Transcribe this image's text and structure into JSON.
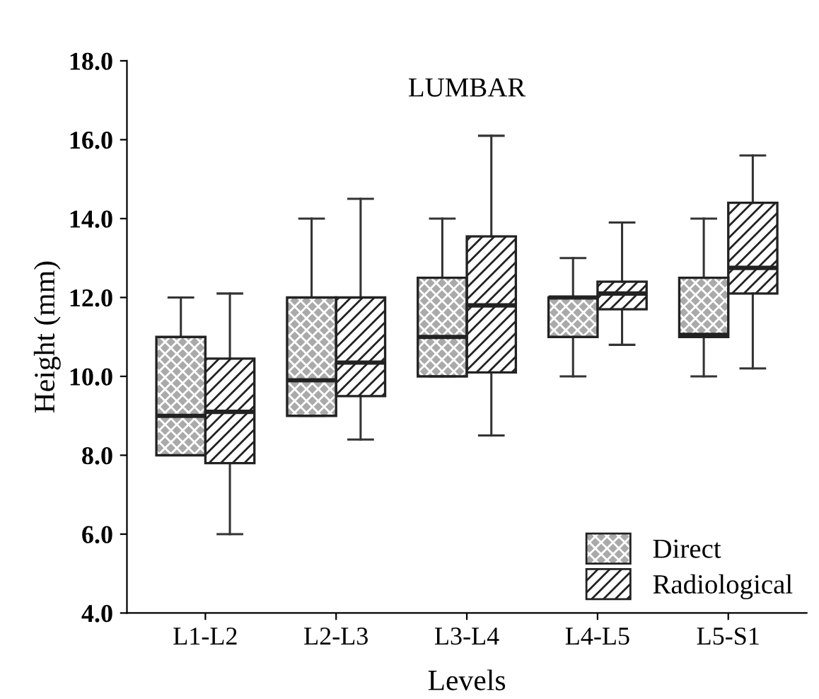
{
  "chart_data": {
    "type": "box",
    "title": "LUMBAR",
    "xlabel": "Levels",
    "ylabel": "Height (mm)",
    "categories": [
      "L1-L2",
      "L2-L3",
      "L3-L4",
      "L4-L5",
      "L5-S1"
    ],
    "series": [
      {
        "name": "Direct",
        "color": "#aaaaaa",
        "boxes": [
          {
            "low": 8,
            "q1": 8,
            "median": 9,
            "q3": 11,
            "high": 12
          },
          {
            "low": 9,
            "q1": 9,
            "median": 9.9,
            "q3": 12,
            "high": 14
          },
          {
            "low": 10,
            "q1": 10,
            "median": 11,
            "q3": 12.5,
            "high": 14
          },
          {
            "low": 10,
            "q1": 11,
            "median": 12,
            "q3": 12,
            "high": 13
          },
          {
            "low": 10,
            "q1": 11,
            "median": 11.05,
            "q3": 12.5,
            "high": 14
          }
        ]
      },
      {
        "name": "Radiological",
        "color": "#ffffff",
        "boxes": [
          {
            "low": 6,
            "q1": 7.8,
            "median": 9.1,
            "q3": 10.45,
            "high": 12.1
          },
          {
            "low": 8.4,
            "q1": 9.5,
            "median": 10.35,
            "q3": 12,
            "high": 14.5
          },
          {
            "low": 8.5,
            "q1": 10.1,
            "median": 11.8,
            "q3": 13.55,
            "high": 16.1
          },
          {
            "low": 10.8,
            "q1": 11.7,
            "median": 12.1,
            "q3": 12.4,
            "high": 13.9
          },
          {
            "low": 10.2,
            "q1": 12.1,
            "median": 12.75,
            "q3": 14.4,
            "high": 15.6
          }
        ]
      }
    ],
    "ylim": [
      4,
      18
    ],
    "yticks": [
      {
        "value": 4,
        "label": "4.0"
      },
      {
        "value": 6,
        "label": "6.0"
      },
      {
        "value": 8,
        "label": "8.0"
      },
      {
        "value": 10,
        "label": "10.0"
      },
      {
        "value": 12,
        "label": "12.0"
      },
      {
        "value": 14,
        "label": "14.0"
      },
      {
        "value": 16,
        "label": "16.0"
      },
      {
        "value": 18,
        "label": "18.0"
      }
    ],
    "legend": "bottom right",
    "grid": false
  }
}
